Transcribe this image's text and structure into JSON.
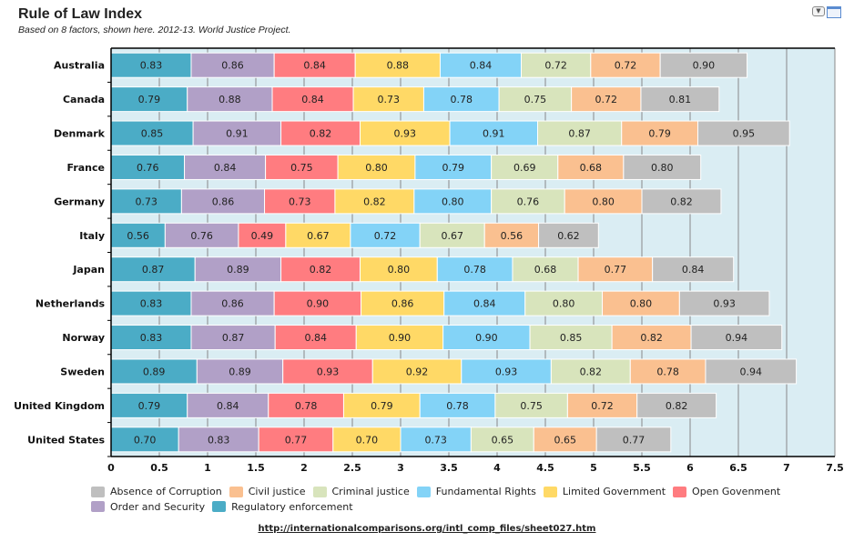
{
  "chart_data": {
    "type": "bar",
    "orientation": "horizontal",
    "stacked": true,
    "title": "Rule of Law Index",
    "subtitle": "Based on 8 factors, shown here. 2012-13. World Justice Project.",
    "categories": [
      "Australia",
      "Canada",
      "Denmark",
      "France",
      "Germany",
      "Italy",
      "Japan",
      "Netherlands",
      "Norway",
      "Sweden",
      "United Kingdom",
      "United States"
    ],
    "xlim": [
      0,
      7.5
    ],
    "xticks": [
      "0",
      "0.5",
      "1",
      "1.5",
      "2",
      "2.5",
      "3",
      "3.5",
      "4",
      "4.5",
      "5",
      "5.5",
      "6",
      "6.5",
      "7",
      "7.5"
    ],
    "grid": true,
    "legend_position": "bottom",
    "series": [
      {
        "name": "Regulatory enforcement",
        "color": "#4bacc6",
        "values": [
          0.83,
          0.79,
          0.85,
          0.76,
          0.73,
          0.56,
          0.87,
          0.83,
          0.83,
          0.89,
          0.79,
          0.7
        ]
      },
      {
        "name": "Order and Security",
        "color": "#b1a0c7",
        "values": [
          0.86,
          0.88,
          0.91,
          0.84,
          0.86,
          0.76,
          0.89,
          0.86,
          0.87,
          0.89,
          0.84,
          0.83
        ]
      },
      {
        "name": "Open Govenment",
        "color": "#ff7c80",
        "values": [
          0.84,
          0.84,
          0.82,
          0.75,
          0.73,
          0.49,
          0.82,
          0.9,
          0.84,
          0.93,
          0.78,
          0.77
        ]
      },
      {
        "name": "Limited Government",
        "color": "#ffd966",
        "values": [
          0.88,
          0.73,
          0.93,
          0.8,
          0.82,
          0.67,
          0.8,
          0.86,
          0.9,
          0.92,
          0.79,
          0.7
        ]
      },
      {
        "name": "Fundamental Rights",
        "color": "#83d3f7",
        "values": [
          0.84,
          0.78,
          0.91,
          0.79,
          0.8,
          0.72,
          0.78,
          0.84,
          0.9,
          0.93,
          0.78,
          0.73
        ]
      },
      {
        "name": "Criminal justice",
        "color": "#d8e4bc",
        "values": [
          0.72,
          0.75,
          0.87,
          0.69,
          0.76,
          0.67,
          0.68,
          0.8,
          0.85,
          0.82,
          0.75,
          0.65
        ]
      },
      {
        "name": "Civil justice",
        "color": "#fac090",
        "values": [
          0.72,
          0.72,
          0.79,
          0.68,
          0.8,
          0.56,
          0.77,
          0.8,
          0.82,
          0.78,
          0.72,
          0.65
        ]
      },
      {
        "name": "Absence of Corruption",
        "color": "#bfbfbf",
        "values": [
          0.9,
          0.81,
          0.95,
          0.8,
          0.82,
          0.62,
          0.84,
          0.93,
          0.94,
          0.94,
          0.82,
          0.77
        ]
      }
    ],
    "legend_order": [
      "Absence of Corruption",
      "Civil justice",
      "Criminal justice",
      "Fundamental Rights",
      "Limited Government",
      "Open Govenment",
      "Order and Security",
      "Regulatory enforcement"
    ]
  },
  "source_link": "http://internationalcomparisons.org/intl_comp_files/sheet027.htm",
  "toolbar": {
    "menu_icon": "dropdown-arrow-icon",
    "window_icon": "window-icon"
  }
}
